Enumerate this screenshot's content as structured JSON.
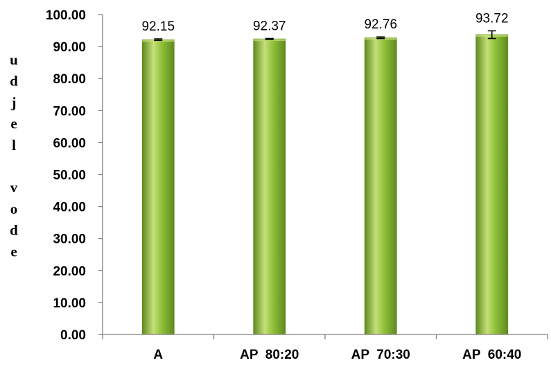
{
  "chart_data": {
    "type": "bar",
    "title": "",
    "xlabel": "",
    "ylabel": "udjel vode",
    "categories": [
      "A",
      "AP  80:20",
      "AP  70:30",
      "AP  60:40"
    ],
    "values": [
      92.15,
      92.37,
      92.76,
      93.72
    ],
    "data_labels": [
      "92.15",
      "92.37",
      "92.76",
      "93.72"
    ],
    "error": [
      0.25,
      0.15,
      0.25,
      1.2
    ],
    "ylim": [
      0,
      100
    ],
    "yticks": [
      0,
      10,
      20,
      30,
      40,
      50,
      60,
      70,
      80,
      90,
      100
    ],
    "ytick_labels": [
      "0.00",
      "10.00",
      "20.00",
      "30.00",
      "40.00",
      "50.00",
      "60.00",
      "70.00",
      "80.00",
      "90.00",
      "100.00"
    ],
    "grid": false,
    "legend": "none",
    "bar_color": "#92c13a",
    "bar_color_light": "#c5e07a",
    "bar_color_dark": "#5f8a1f"
  }
}
